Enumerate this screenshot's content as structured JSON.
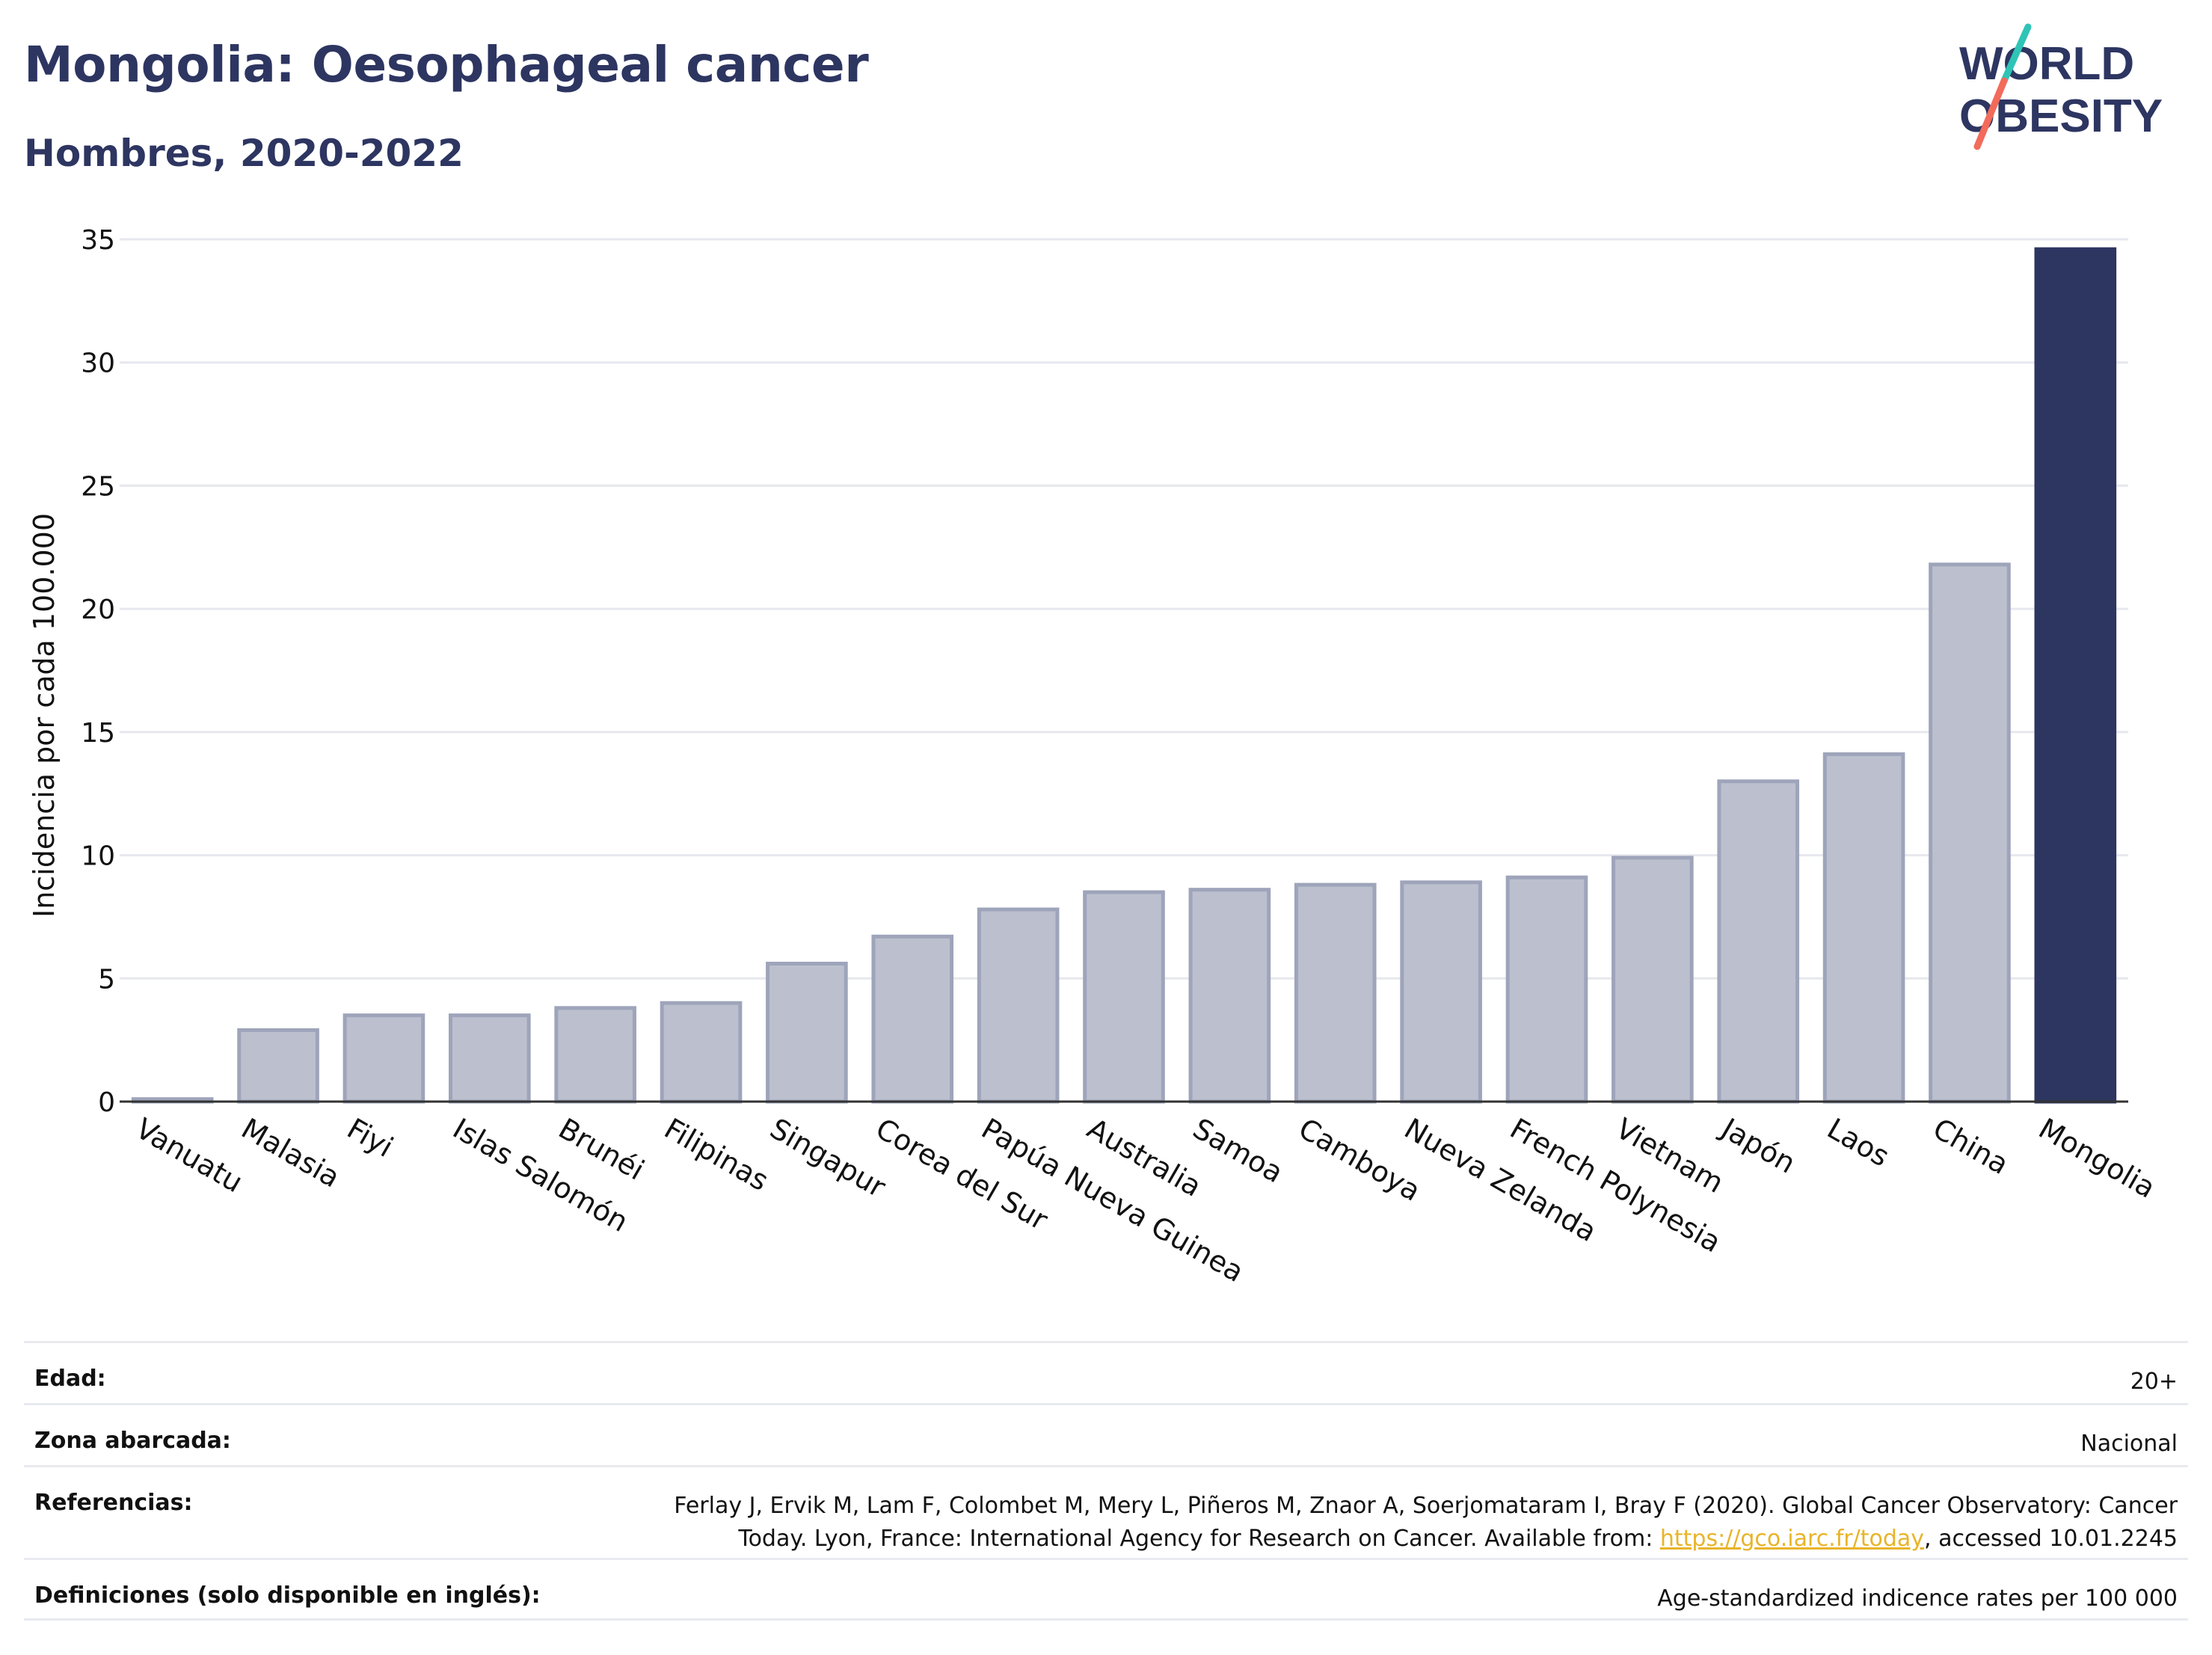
{
  "header": {
    "title": "Mongolia: Oesophageal cancer",
    "subtitle": "Hombres, 2020-2022"
  },
  "logo": {
    "line1": "WORLD",
    "line2": "OBESITY",
    "colors": {
      "text": "#2d3561",
      "teal": "#2ec4b6",
      "coral": "#f26b5b"
    }
  },
  "chart_data": {
    "type": "bar",
    "ylabel": "Incidencia por cada 100.000",
    "ylim": [
      0,
      35
    ],
    "yticks": [
      0,
      5,
      10,
      15,
      20,
      25,
      30,
      35
    ],
    "grid": true,
    "categories": [
      "Vanuatu",
      "Malasia",
      "Fiyi",
      "Islas Salomón",
      "Brunéi",
      "Filipinas",
      "Singapur",
      "Corea del Sur",
      "Papúa Nueva Guinea",
      "Australia",
      "Samoa",
      "Camboya",
      "Nueva Zelanda",
      "French Polynesia",
      "Vietnam",
      "Japón",
      "Laos",
      "China",
      "Mongolia"
    ],
    "values": [
      0.1,
      2.9,
      3.5,
      3.5,
      3.8,
      4.0,
      5.6,
      6.7,
      7.8,
      8.5,
      8.6,
      8.8,
      8.9,
      9.1,
      9.9,
      13.0,
      14.1,
      21.8,
      34.6
    ],
    "highlight": "Mongolia",
    "colors": {
      "bar": "#bcc0ce",
      "bar_border": "#9ea4ba",
      "highlight": "#2d3561",
      "grid": "#e6e8ee",
      "axis": "#333333"
    }
  },
  "meta": {
    "age_label": "Edad:",
    "age_value": "20+",
    "area_label": "Zona abarcada:",
    "area_value": "Nacional",
    "refs_label": "Referencias:",
    "refs_line1": "Ferlay J, Ervik M, Lam F, Colombet M, Mery L, Piñeros M, Znaor A, Soerjomataram I, Bray F (2020). Global Cancer Observatory: Cancer",
    "refs_line2_pre": "Today. Lyon, France: International Agency for Research on Cancer. Available from: ",
    "refs_link": "https://gco.iarc.fr/today",
    "refs_line2_post": ", accessed 10.01.2245",
    "defs_label": "Definiciones (solo disponible en inglés):",
    "defs_value": "Age-standardized indicence rates per 100 000"
  }
}
